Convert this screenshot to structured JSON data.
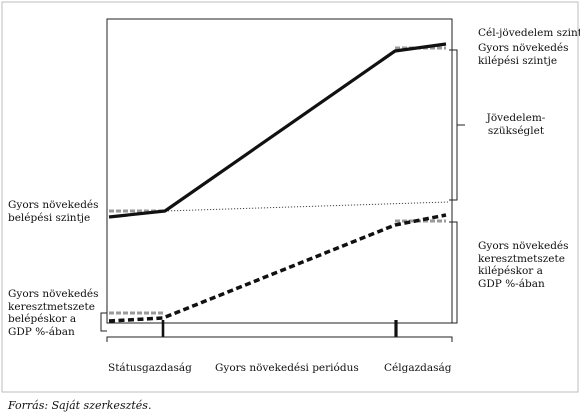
{
  "labels": {
    "target_income": "Cél-jövedelem szint",
    "exit_income": [
      "Gyors növekedés",
      "kilépési szintje"
    ],
    "income_need": [
      "Jövedelem-",
      "szükséglet"
    ],
    "entry_income": [
      "Gyors növekedés",
      "belépési szintje"
    ],
    "exit_gdp": [
      "Gyors növekedés",
      "keresztmetszete",
      "kilépéskor a",
      "GDP %-ában"
    ],
    "entry_gdp": [
      "Gyors növekedés",
      "keresztmetszete",
      "belépéskor a",
      "GDP %-ában"
    ],
    "phase_status": "Státusgazdaság",
    "phase_rapid": "Gyors növekedési periódus",
    "phase_target": "Célgazdaság"
  },
  "source": "Forrás: Saját szerkesztés.",
  "colors": {
    "line": "#111111",
    "dash": "#9a9a9a",
    "frame": "#222222"
  }
}
